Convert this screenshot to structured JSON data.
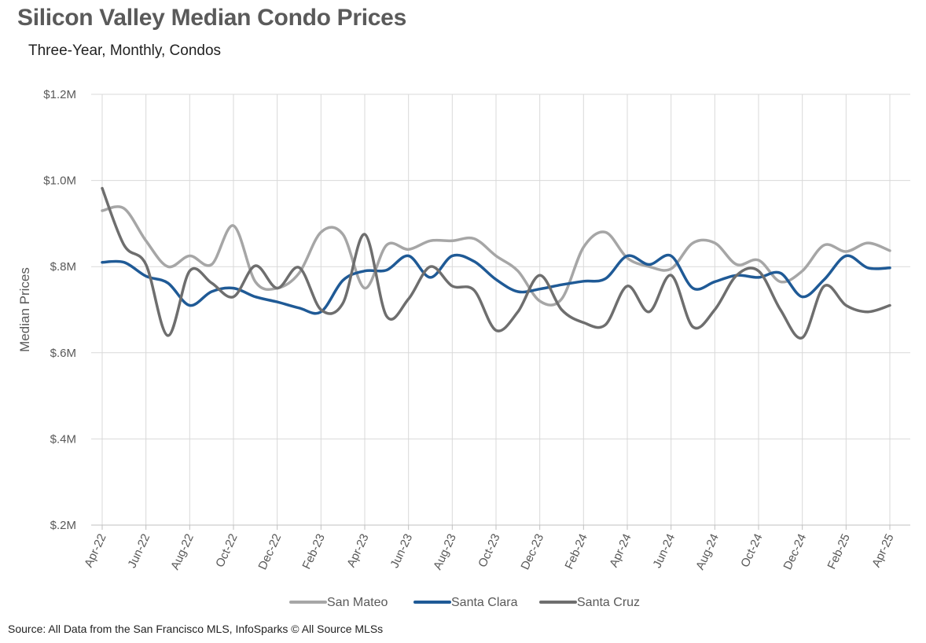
{
  "chart_data": {
    "type": "line",
    "title": "Silicon Valley Median Condo Prices",
    "subtitle": "Three-Year, Monthly, Condos",
    "ylabel": "Median Prices",
    "xlabel": "",
    "ylim": [
      200000,
      1200000
    ],
    "y_ticks": [
      {
        "value": 200000,
        "label": "$.2M"
      },
      {
        "value": 400000,
        "label": "$.4M"
      },
      {
        "value": 600000,
        "label": "$.6M"
      },
      {
        "value": 800000,
        "label": "$.8M"
      },
      {
        "value": 1000000,
        "label": "$1.0M"
      },
      {
        "value": 1200000,
        "label": "$1.2M"
      }
    ],
    "x": [
      "Apr-22",
      "May-22",
      "Jun-22",
      "Jul-22",
      "Aug-22",
      "Sep-22",
      "Oct-22",
      "Nov-22",
      "Dec-22",
      "Jan-23",
      "Feb-23",
      "Mar-23",
      "Apr-23",
      "May-23",
      "Jun-23",
      "Jul-23",
      "Aug-23",
      "Sep-23",
      "Oct-23",
      "Nov-23",
      "Dec-23",
      "Jan-24",
      "Feb-24",
      "Mar-24",
      "Apr-24",
      "May-24",
      "Jun-24",
      "Jul-24",
      "Aug-24",
      "Sep-24",
      "Oct-24",
      "Nov-24",
      "Dec-24",
      "Jan-25",
      "Feb-25",
      "Mar-25",
      "Apr-25"
    ],
    "x_tick_labels": [
      "Apr-22",
      "Jun-22",
      "Aug-22",
      "Oct-22",
      "Dec-22",
      "Feb-23",
      "Apr-23",
      "Jun-23",
      "Aug-23",
      "Oct-23",
      "Dec-23",
      "Feb-24",
      "Apr-24",
      "Jun-24",
      "Aug-24",
      "Oct-24",
      "Dec-24",
      "Feb-25",
      "Apr-25"
    ],
    "grid": true,
    "legend_position": "bottom",
    "series": [
      {
        "name": "San Mateo",
        "color": "#a6a6a6",
        "values": [
          930000,
          935000,
          860000,
          800000,
          825000,
          805000,
          895000,
          765000,
          750000,
          785000,
          880000,
          875000,
          750000,
          850000,
          840000,
          860000,
          860000,
          865000,
          825000,
          790000,
          720000,
          725000,
          845000,
          880000,
          820000,
          800000,
          795000,
          855000,
          855000,
          805000,
          815000,
          765000,
          790000,
          850000,
          835000,
          855000,
          837000
        ]
      },
      {
        "name": "Santa Clara",
        "color": "#1f5a96",
        "values": [
          810000,
          810000,
          778000,
          762000,
          710000,
          742000,
          750000,
          730000,
          718000,
          704000,
          695000,
          768000,
          790000,
          792000,
          825000,
          775000,
          825000,
          812000,
          770000,
          742000,
          748000,
          758000,
          766000,
          772000,
          825000,
          805000,
          825000,
          750000,
          765000,
          780000,
          775000,
          785000,
          730000,
          770000,
          825000,
          797000,
          797000
        ]
      },
      {
        "name": "Santa Cruz",
        "color": "#6e6e6e",
        "values": [
          982000,
          850000,
          805000,
          640000,
          790000,
          762000,
          730000,
          802000,
          750000,
          798000,
          700000,
          715000,
          875000,
          685000,
          725000,
          800000,
          755000,
          745000,
          652000,
          695000,
          780000,
          700000,
          670000,
          665000,
          755000,
          695000,
          780000,
          660000,
          700000,
          780000,
          790000,
          700000,
          635000,
          755000,
          710000,
          695000,
          710000
        ]
      }
    ]
  },
  "footer": {
    "source": "Source: All Data from the San Francisco MLS, InfoSparks © All Source MLSs"
  }
}
